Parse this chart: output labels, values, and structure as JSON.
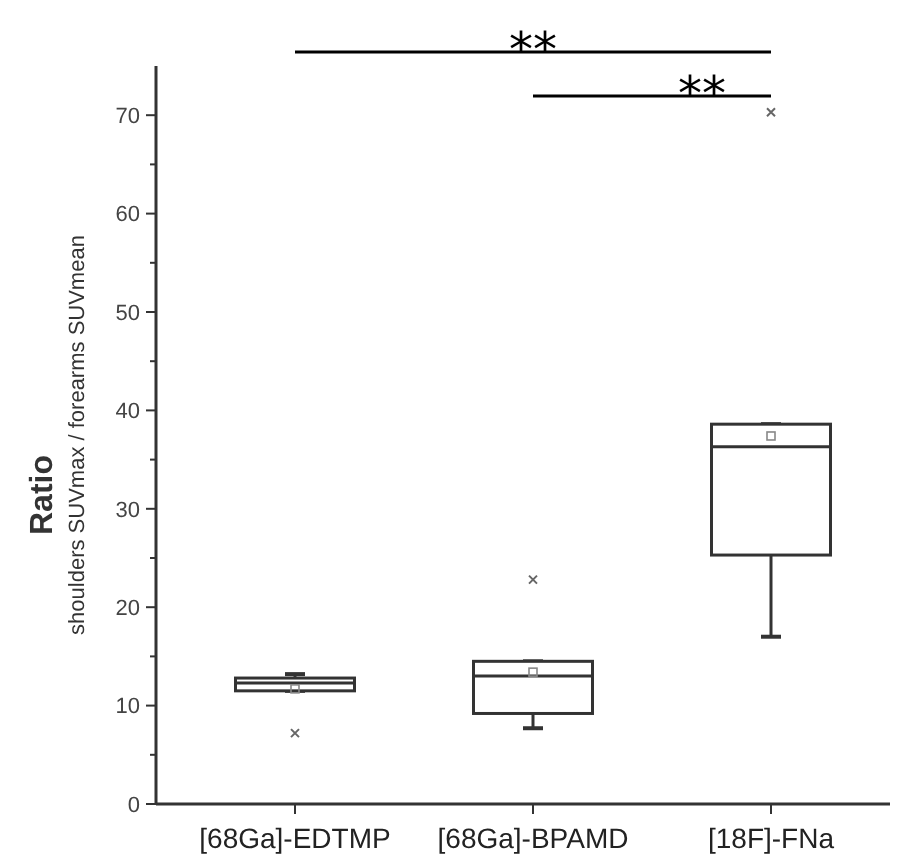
{
  "chart_data": {
    "type": "box",
    "ylabel": "Ratio\nshoulders SUVmax / forearms SUVmean",
    "categories": [
      "[68Ga]-EDTMP",
      "[68Ga]-BPAMD",
      "[18F]-FNa"
    ],
    "boxes": [
      {
        "low": 11.5,
        "q1": 11.5,
        "median": 12.3,
        "q3": 12.8,
        "high": 13.2,
        "mean": 11.7,
        "outliers": [
          7.2
        ]
      },
      {
        "low": 7.7,
        "q1": 9.2,
        "median": 13.0,
        "q3": 14.5,
        "high": 14.5,
        "mean": 13.4,
        "outliers": [
          22.8
        ]
      },
      {
        "low": 17.0,
        "q1": 25.3,
        "median": 36.3,
        "q3": 38.6,
        "high": 38.6,
        "mean": 37.4,
        "outliers": [
          70.3
        ]
      }
    ],
    "color": "#333333",
    "ylim": [
      0,
      75
    ],
    "yticks": [
      0,
      {
        "value": 5,
        "label": null
      },
      10,
      {
        "value": 15,
        "label": null
      },
      20,
      {
        "value": 25,
        "label": null
      },
      30,
      {
        "value": 35,
        "label": null
      },
      40,
      {
        "value": 45,
        "label": null
      },
      50,
      {
        "value": 55,
        "label": null
      },
      60,
      {
        "value": 65,
        "label": null
      },
      70
    ],
    "annotations": [
      "**",
      "**"
    ],
    "grid": false
  }
}
